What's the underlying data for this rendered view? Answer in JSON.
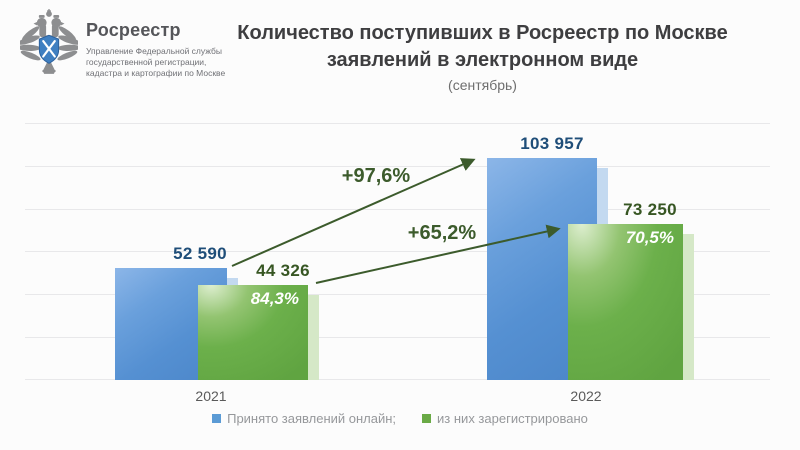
{
  "logo": {
    "brand": "Росреестр",
    "org_line1": "Управление Федеральной службы",
    "org_line2": "государственной регистрации,",
    "org_line3": "кадастра и картографии по Москве"
  },
  "title": {
    "line1": "Количество поступивших в Росреестр по Москве",
    "line2": "заявлений в электронном виде",
    "subtitle": "(сентябрь)"
  },
  "chart_data": {
    "type": "bar",
    "categories": [
      "2021",
      "2022"
    ],
    "series": [
      {
        "name": "Принято заявлений онлайн;",
        "color": "#5b9bd5",
        "values": [
          52590,
          103957
        ],
        "labels": [
          "52 590",
          "103 957"
        ]
      },
      {
        "name": "из них зарегистрировано",
        "color": "#6aaa46",
        "values": [
          44326,
          73250
        ],
        "labels": [
          "44 326",
          "73 250"
        ],
        "inner_labels": [
          "84,3%",
          "70,5%"
        ]
      }
    ],
    "annotations": [
      {
        "label": "+97,6%",
        "from_series": 0,
        "from_year": "2021",
        "to_year": "2022"
      },
      {
        "label": "+65,2%",
        "from_series": 1,
        "from_year": "2021",
        "to_year": "2022"
      }
    ],
    "ylim": [
      0,
      120000
    ],
    "grid_step": 20000,
    "grid": true,
    "legend_position": "bottom",
    "accent_arrow_color": "#3c5b2c",
    "blue_label_color": "#1f4e79",
    "green_label_color": "#375623"
  }
}
